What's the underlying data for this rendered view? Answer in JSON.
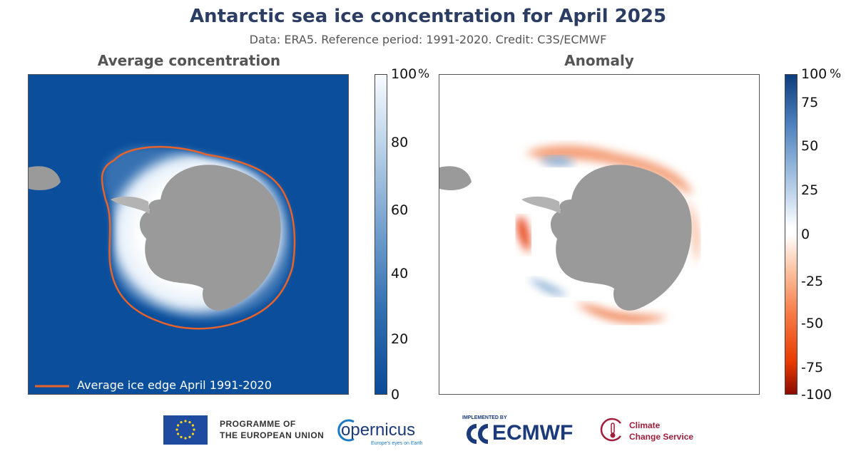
{
  "header": {
    "title": "Antarctic sea ice concentration for April 2025",
    "subtitle": "Data: ERA5.  Reference period: 1991-2020.  Credit: C3S/ECMWF"
  },
  "left_panel": {
    "title": "Average concentration",
    "legend_label": "Average ice edge April 1991-2020",
    "colorbar": {
      "ticks": [
        "100",
        "80",
        "60",
        "40",
        "20",
        "0"
      ],
      "unit": "%",
      "range": [
        0,
        100
      ]
    }
  },
  "right_panel": {
    "title": "Anomaly",
    "colorbar": {
      "ticks": [
        "100",
        "75",
        "50",
        "25",
        "0",
        "-25",
        "-50",
        "-75",
        "-100"
      ],
      "unit": "%",
      "range": [
        -100,
        100
      ]
    }
  },
  "colors": {
    "ocean": "#0b4f9c",
    "land": "#9a9a9a",
    "ice_edge": "#e8632a",
    "title": "#2c3d64"
  },
  "footer": {
    "eu_line1": "PROGRAMME OF",
    "eu_line2": "THE EUROPEAN UNION",
    "copernicus": "opernicus",
    "copernicus_tag": "Europe's eyes on Earth",
    "ecmwf_implemented": "IMPLEMENTED BY",
    "ecmwf": "ECMWF",
    "c3s_line1": "Climate",
    "c3s_line2": "Change Service"
  }
}
